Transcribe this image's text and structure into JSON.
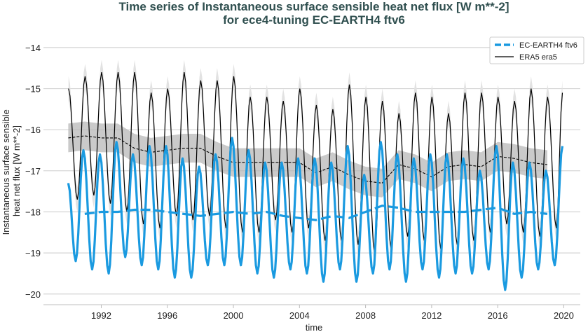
{
  "chart_data": {
    "type": "line",
    "title": "Time series of Instantaneous surface sensible heat net flux [W m**-2]",
    "subtitle": "for ece4-tuning EC-EARTH4 ftv6",
    "xlabel": "time",
    "ylabel": "Instantaneous surface sensible heat net flux [W m**-2]",
    "xlim": [
      1988.5,
      2021.0
    ],
    "ylim": [
      -20.26,
      -13.78
    ],
    "xticks": [
      1992,
      1996,
      2000,
      2004,
      2008,
      2012,
      2016,
      2020
    ],
    "xtick_labels": [
      "1992",
      "1996",
      "2000",
      "2004",
      "2008",
      "2012",
      "2016",
      "2020"
    ],
    "yticks": [
      -14,
      -15,
      -16,
      -17,
      -18,
      -19,
      -20
    ],
    "ytick_labels": [
      "−14",
      "−15",
      "−16",
      "−17",
      "−18",
      "−19",
      "−20"
    ],
    "grid": "horizontal",
    "legend_placement": "top-right",
    "years": [
      1990,
      1991,
      1992,
      1993,
      1994,
      1995,
      1996,
      1997,
      1998,
      1999,
      2000,
      2001,
      2002,
      2003,
      2004,
      2005,
      2006,
      2007,
      2008,
      2009,
      2010,
      2011,
      2012,
      2013,
      2014,
      2015,
      2016,
      2017,
      2018,
      2019
    ],
    "series": [
      {
        "name": "EC-EARTH4 ftv6",
        "color": "#1a9ae0",
        "style": "thick line, annual mean dashed",
        "monthly_start": -17.3,
        "monthly_end": -16.4,
        "annual_peaks_late_year": [
          -16.5,
          -16.6,
          -16.3,
          -16.6,
          -16.4,
          -16.4,
          -16.7,
          -16.9,
          -16.6,
          -16.2,
          -16.5,
          -16.8,
          -16.8,
          -16.7,
          -16.7,
          -16.8,
          -16.4,
          -17.1,
          -16.3,
          -16.6,
          -16.7,
          -16.6,
          -16.6,
          -16.7,
          -17.0,
          -16.4,
          -16.8,
          -16.8,
          -17.0,
          -16.4
        ],
        "annual_troughs_mid_year": [
          -19.2,
          -19.4,
          -19.5,
          -19.1,
          -19.3,
          -19.4,
          -19.6,
          -19.6,
          -19.3,
          -19.3,
          -19.3,
          -19.5,
          -19.6,
          -19.4,
          -19.5,
          -19.7,
          -19.4,
          -19.7,
          -19.5,
          -19.4,
          -19.7,
          -19.4,
          -19.6,
          -19.5,
          -19.5,
          -19.4,
          -19.9,
          -19.6,
          -19.4,
          -19.3
        ],
        "annual_mean_years": [
          1991,
          1992,
          1993,
          1994,
          1995,
          1996,
          1997,
          1998,
          1999,
          2000,
          2001,
          2002,
          2003,
          2004,
          2005,
          2006,
          2007,
          2008,
          2009,
          2010,
          2011,
          2012,
          2013,
          2014,
          2015,
          2016,
          2017,
          2018,
          2019
        ],
        "annual_mean": [
          -18.05,
          -18.0,
          -18.0,
          -17.95,
          -17.95,
          -18.0,
          -18.05,
          -18.1,
          -18.05,
          -18.0,
          -18.05,
          -18.0,
          -18.1,
          -18.15,
          -18.2,
          -18.1,
          -18.15,
          -18.0,
          -17.85,
          -17.9,
          -18.0,
          -18.0,
          -18.0,
          -18.0,
          -17.95,
          -17.9,
          -18.05,
          -18.0,
          -18.05
        ]
      },
      {
        "name": "ERA5 era5",
        "color": "#000000",
        "style": "thin line with light grey spread, annual mean dashed with grey band",
        "monthly_end": -15.1,
        "annual_peaks_early_year": [
          -15.0,
          -14.7,
          -14.6,
          -14.6,
          -14.6,
          -15.1,
          -15.0,
          -14.6,
          -14.8,
          -14.8,
          -14.7,
          -15.2,
          -15.2,
          -15.3,
          -15.0,
          -15.4,
          -15.5,
          -14.9,
          -15.2,
          -15.3,
          -15.6,
          -15.1,
          -15.2,
          -15.6,
          -15.1,
          -15.1,
          -15.2,
          -15.3,
          -15.0,
          -15.2
        ],
        "annual_troughs_mid_year": [
          -17.7,
          -17.6,
          -17.8,
          -18.0,
          -18.3,
          -18.4,
          -18.1,
          -18.2,
          -18.1,
          -18.4,
          -18.5,
          -18.5,
          -18.2,
          -18.5,
          -18.4,
          -18.7,
          -18.7,
          -18.8,
          -19.0,
          -18.9,
          -18.6,
          -18.7,
          -18.9,
          -18.8,
          -18.7,
          -18.5,
          -18.3,
          -18.5,
          -18.6,
          -18.4
        ],
        "annual_mean_years": [
          1990,
          1991,
          1992,
          1993,
          1994,
          1995,
          1996,
          1997,
          1998,
          1999,
          2000,
          2001,
          2002,
          2003,
          2004,
          2005,
          2006,
          2007,
          2008,
          2009,
          2010,
          2011,
          2012,
          2013,
          2014,
          2015,
          2016,
          2017,
          2018,
          2019
        ],
        "annual_mean": [
          -16.2,
          -16.15,
          -16.2,
          -16.2,
          -16.45,
          -16.55,
          -16.5,
          -16.45,
          -16.45,
          -16.65,
          -16.8,
          -16.8,
          -16.8,
          -16.8,
          -16.8,
          -17.05,
          -16.9,
          -17.1,
          -17.25,
          -17.3,
          -16.85,
          -16.95,
          -17.15,
          -16.9,
          -16.85,
          -16.9,
          -16.65,
          -16.7,
          -16.8,
          -16.85
        ],
        "annual_mean_band_halfwidth": 0.35,
        "monthly_spread_halfwidth": 0.3
      }
    ]
  }
}
